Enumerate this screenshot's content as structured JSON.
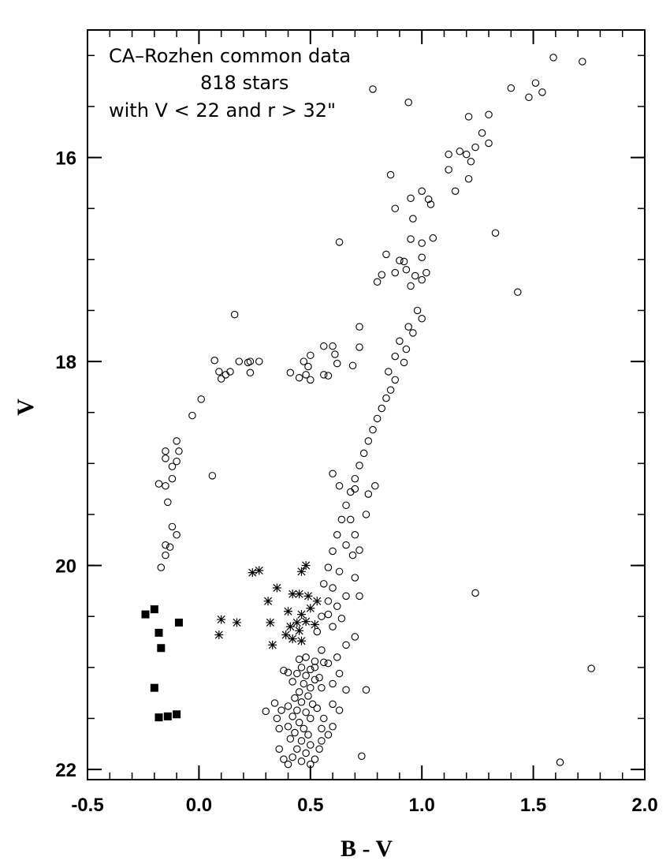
{
  "chart_data": {
    "type": "scatter",
    "title": "",
    "annotations": [
      "CA–Rozhen common data",
      "818 stars",
      "with V < 22 and r > 32\""
    ],
    "xlabel": "B - V",
    "ylabel": "V",
    "xlim": [
      -0.5,
      2.0
    ],
    "ylim": [
      22.1,
      14.75
    ],
    "y_inverted": true,
    "x_ticks": [
      {
        "value": -0.5,
        "label": "-0.5"
      },
      {
        "value": 0.0,
        "label": "0.0"
      },
      {
        "value": 0.5,
        "label": "0.5"
      },
      {
        "value": 1.0,
        "label": "1.0"
      },
      {
        "value": 1.5,
        "label": "1.5"
      },
      {
        "value": 2.0,
        "label": "2.0"
      }
    ],
    "y_ticks": [
      {
        "value": 16,
        "label": "16"
      },
      {
        "value": 18,
        "label": "18"
      },
      {
        "value": 20,
        "label": "20"
      },
      {
        "value": 22,
        "label": "22"
      }
    ],
    "x_minor_step": 0.1,
    "y_minor_step": 0.5,
    "grid": false,
    "series": [
      {
        "marker": "open-circle",
        "points": [
          [
            1.59,
            15.02
          ],
          [
            1.72,
            15.06
          ],
          [
            0.78,
            15.33
          ],
          [
            0.94,
            15.46
          ],
          [
            1.21,
            15.6
          ],
          [
            1.3,
            15.58
          ],
          [
            1.4,
            15.32
          ],
          [
            1.48,
            15.41
          ],
          [
            1.51,
            15.27
          ],
          [
            1.54,
            15.36
          ],
          [
            1.27,
            15.76
          ],
          [
            1.3,
            15.86
          ],
          [
            1.24,
            15.9
          ],
          [
            1.17,
            15.94
          ],
          [
            1.2,
            15.97
          ],
          [
            1.22,
            16.04
          ],
          [
            1.12,
            15.97
          ],
          [
            1.12,
            16.12
          ],
          [
            1.15,
            16.33
          ],
          [
            1.21,
            16.21
          ],
          [
            0.86,
            16.17
          ],
          [
            1.0,
            16.33
          ],
          [
            1.03,
            16.41
          ],
          [
            1.04,
            16.46
          ],
          [
            0.95,
            16.4
          ],
          [
            0.88,
            16.5
          ],
          [
            0.96,
            16.6
          ],
          [
            0.95,
            16.8
          ],
          [
            1.0,
            16.84
          ],
          [
            1.05,
            16.79
          ],
          [
            1.33,
            16.74
          ],
          [
            0.63,
            16.83
          ],
          [
            0.84,
            16.95
          ],
          [
            0.9,
            17.01
          ],
          [
            0.92,
            17.02
          ],
          [
            1.0,
            16.98
          ],
          [
            0.82,
            17.15
          ],
          [
            0.8,
            17.22
          ],
          [
            0.88,
            17.13
          ],
          [
            0.93,
            17.1
          ],
          [
            0.97,
            17.16
          ],
          [
            1.0,
            17.2
          ],
          [
            1.02,
            17.13
          ],
          [
            0.95,
            17.26
          ],
          [
            1.43,
            17.32
          ],
          [
            0.16,
            17.54
          ],
          [
            0.98,
            17.5
          ],
          [
            1.0,
            17.58
          ],
          [
            0.94,
            17.66
          ],
          [
            0.96,
            17.72
          ],
          [
            0.9,
            17.8
          ],
          [
            0.93,
            17.88
          ],
          [
            0.88,
            17.95
          ],
          [
            0.92,
            18.01
          ],
          [
            0.85,
            18.1
          ],
          [
            0.88,
            18.18
          ],
          [
            0.86,
            18.28
          ],
          [
            0.84,
            18.36
          ],
          [
            0.82,
            18.46
          ],
          [
            0.8,
            18.56
          ],
          [
            0.78,
            18.67
          ],
          [
            0.76,
            18.78
          ],
          [
            0.74,
            18.9
          ],
          [
            0.72,
            19.02
          ],
          [
            0.7,
            19.15
          ],
          [
            0.68,
            19.28
          ],
          [
            0.66,
            19.41
          ],
          [
            0.64,
            19.55
          ],
          [
            0.62,
            19.7
          ],
          [
            0.6,
            19.86
          ],
          [
            0.58,
            20.02
          ],
          [
            0.56,
            20.18
          ],
          [
            0.58,
            20.35
          ],
          [
            0.55,
            20.5
          ],
          [
            0.53,
            20.65
          ],
          [
            0.72,
            17.66
          ],
          [
            0.72,
            17.86
          ],
          [
            0.69,
            18.04
          ],
          [
            0.56,
            17.85
          ],
          [
            0.6,
            17.85
          ],
          [
            0.61,
            17.93
          ],
          [
            0.62,
            18.02
          ],
          [
            0.5,
            17.94
          ],
          [
            0.47,
            18.0
          ],
          [
            0.49,
            18.05
          ],
          [
            0.48,
            18.13
          ],
          [
            0.5,
            18.18
          ],
          [
            0.45,
            18.16
          ],
          [
            0.41,
            18.11
          ],
          [
            0.56,
            18.13
          ],
          [
            0.58,
            18.14
          ],
          [
            0.07,
            17.99
          ],
          [
            0.09,
            18.1
          ],
          [
            0.12,
            18.13
          ],
          [
            0.14,
            18.1
          ],
          [
            0.1,
            18.17
          ],
          [
            0.18,
            18.0
          ],
          [
            0.22,
            18.01
          ],
          [
            0.23,
            18.0
          ],
          [
            0.27,
            18.0
          ],
          [
            0.23,
            18.11
          ],
          [
            0.01,
            18.37
          ],
          [
            -0.03,
            18.53
          ],
          [
            -0.1,
            18.78
          ],
          [
            -0.09,
            18.88
          ],
          [
            -0.15,
            18.88
          ],
          [
            -0.15,
            18.95
          ],
          [
            -0.1,
            18.98
          ],
          [
            -0.12,
            19.03
          ],
          [
            -0.12,
            19.15
          ],
          [
            -0.18,
            19.2
          ],
          [
            -0.15,
            19.22
          ],
          [
            0.06,
            19.12
          ],
          [
            -0.14,
            19.38
          ],
          [
            -0.12,
            19.62
          ],
          [
            -0.1,
            19.7
          ],
          [
            -0.15,
            19.8
          ],
          [
            -0.13,
            19.82
          ],
          [
            -0.15,
            19.9
          ],
          [
            -0.17,
            20.02
          ],
          [
            0.6,
            19.1
          ],
          [
            0.63,
            19.22
          ],
          [
            0.7,
            19.25
          ],
          [
            0.76,
            19.3
          ],
          [
            0.79,
            19.22
          ],
          [
            0.75,
            19.5
          ],
          [
            0.68,
            19.55
          ],
          [
            0.7,
            19.7
          ],
          [
            0.66,
            19.8
          ],
          [
            0.72,
            19.85
          ],
          [
            0.69,
            19.9
          ],
          [
            0.63,
            20.06
          ],
          [
            0.7,
            20.12
          ],
          [
            0.6,
            20.22
          ],
          [
            0.66,
            20.3
          ],
          [
            0.72,
            20.3
          ],
          [
            0.62,
            20.4
          ],
          [
            0.58,
            20.48
          ],
          [
            0.64,
            20.52
          ],
          [
            0.6,
            20.6
          ],
          [
            0.7,
            20.7
          ],
          [
            0.66,
            20.78
          ],
          [
            0.55,
            20.83
          ],
          [
            0.62,
            20.9
          ],
          [
            0.58,
            20.96
          ],
          [
            0.63,
            21.06
          ],
          [
            0.6,
            21.16
          ],
          [
            0.66,
            21.22
          ],
          [
            0.75,
            21.22
          ],
          [
            0.6,
            21.36
          ],
          [
            0.63,
            21.42
          ],
          [
            0.56,
            21.5
          ],
          [
            0.6,
            21.58
          ],
          [
            0.58,
            21.66
          ],
          [
            0.55,
            21.72
          ],
          [
            0.73,
            21.87
          ],
          [
            1.24,
            20.27
          ],
          [
            1.76,
            21.01
          ],
          [
            1.62,
            21.93
          ],
          [
            0.38,
            21.03
          ],
          [
            0.4,
            21.05
          ],
          [
            0.34,
            21.35
          ],
          [
            0.3,
            21.43
          ],
          [
            0.37,
            21.42
          ],
          [
            0.35,
            21.5
          ],
          [
            0.36,
            21.6
          ],
          [
            0.36,
            21.8
          ],
          [
            0.38,
            21.9
          ],
          [
            0.4,
            21.95
          ],
          [
            0.45,
            20.92
          ],
          [
            0.48,
            20.9
          ],
          [
            0.52,
            20.94
          ],
          [
            0.46,
            21.0
          ],
          [
            0.5,
            21.02
          ],
          [
            0.44,
            21.06
          ],
          [
            0.48,
            21.08
          ],
          [
            0.52,
            21.12
          ],
          [
            0.42,
            21.14
          ],
          [
            0.47,
            21.16
          ],
          [
            0.5,
            21.2
          ],
          [
            0.45,
            21.24
          ],
          [
            0.49,
            21.28
          ],
          [
            0.43,
            21.3
          ],
          [
            0.46,
            21.34
          ],
          [
            0.51,
            21.36
          ],
          [
            0.4,
            21.38
          ],
          [
            0.44,
            21.42
          ],
          [
            0.48,
            21.44
          ],
          [
            0.42,
            21.48
          ],
          [
            0.5,
            21.5
          ],
          [
            0.45,
            21.54
          ],
          [
            0.4,
            21.58
          ],
          [
            0.47,
            21.6
          ],
          [
            0.43,
            21.64
          ],
          [
            0.49,
            21.66
          ],
          [
            0.41,
            21.7
          ],
          [
            0.46,
            21.72
          ],
          [
            0.5,
            21.76
          ],
          [
            0.44,
            21.8
          ],
          [
            0.48,
            21.84
          ],
          [
            0.42,
            21.88
          ],
          [
            0.46,
            21.92
          ],
          [
            0.5,
            21.95
          ],
          [
            0.52,
            21.9
          ],
          [
            0.54,
            21.8
          ],
          [
            0.55,
            21.6
          ],
          [
            0.53,
            21.4
          ],
          [
            0.55,
            21.2
          ],
          [
            0.52,
            21.0
          ],
          [
            0.56,
            20.95
          ],
          [
            0.54,
            21.1
          ]
        ]
      },
      {
        "marker": "asterisk",
        "points": [
          [
            0.24,
            20.07
          ],
          [
            0.27,
            20.05
          ],
          [
            0.48,
            20.0
          ],
          [
            0.46,
            20.06
          ],
          [
            0.35,
            20.22
          ],
          [
            0.31,
            20.35
          ],
          [
            0.42,
            20.28
          ],
          [
            0.45,
            20.28
          ],
          [
            0.49,
            20.3
          ],
          [
            0.53,
            20.35
          ],
          [
            0.4,
            20.45
          ],
          [
            0.46,
            20.48
          ],
          [
            0.5,
            20.42
          ],
          [
            0.1,
            20.53
          ],
          [
            0.17,
            20.56
          ],
          [
            0.32,
            20.56
          ],
          [
            0.44,
            20.56
          ],
          [
            0.48,
            20.55
          ],
          [
            0.52,
            20.58
          ],
          [
            0.41,
            20.6
          ],
          [
            0.45,
            20.64
          ],
          [
            0.09,
            20.68
          ],
          [
            0.42,
            20.72
          ],
          [
            0.39,
            20.68
          ],
          [
            0.46,
            20.74
          ],
          [
            0.33,
            20.78
          ]
        ]
      },
      {
        "marker": "filled-square",
        "points": [
          [
            -0.24,
            20.48
          ],
          [
            -0.2,
            20.43
          ],
          [
            -0.18,
            20.66
          ],
          [
            -0.09,
            20.56
          ],
          [
            -0.17,
            20.81
          ],
          [
            -0.2,
            21.2
          ],
          [
            -0.18,
            21.49
          ],
          [
            -0.14,
            21.48
          ],
          [
            -0.1,
            21.46
          ]
        ]
      }
    ]
  }
}
